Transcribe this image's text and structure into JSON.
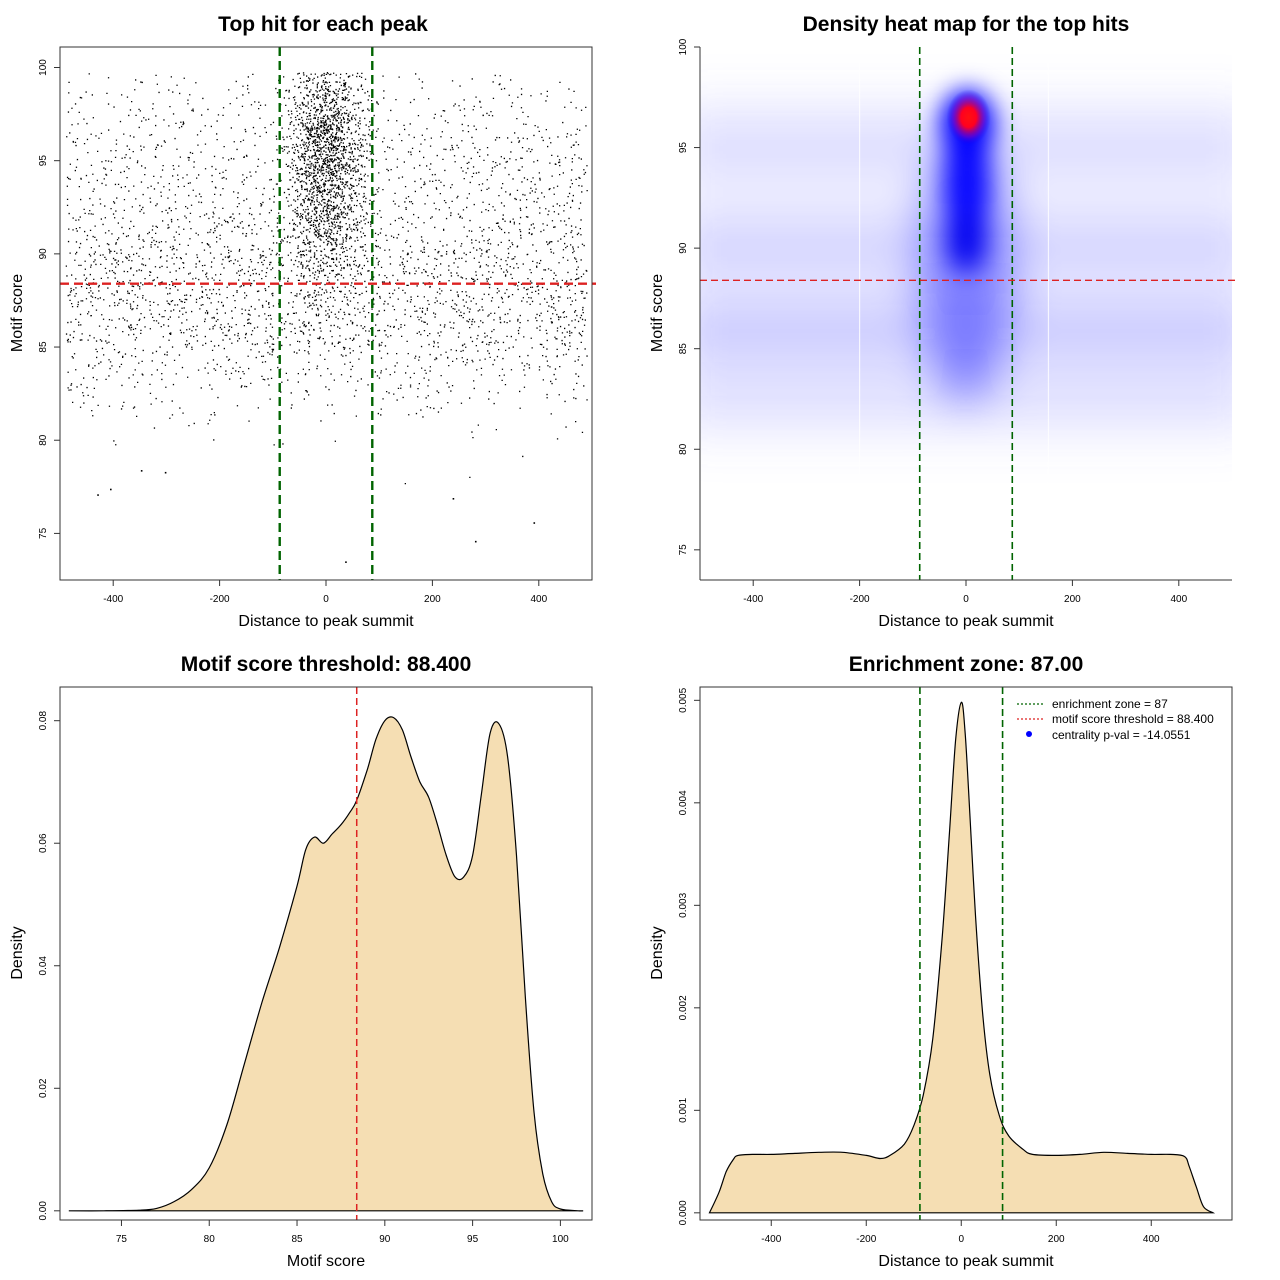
{
  "colors": {
    "green": "#006400",
    "red": "#dd2222",
    "fill": "#f5deb3",
    "heat_blue": "#0000ff",
    "heat_red": "#ff0000"
  },
  "chart_data": [
    {
      "id": "scatter",
      "type": "scatter",
      "title": "Top hit for each peak",
      "xlabel": "Distance to peak summit",
      "ylabel": "Motif score",
      "xlim": [
        -500,
        500
      ],
      "ylim": [
        72.5,
        101.1
      ],
      "xticks": [
        -400,
        -200,
        0,
        200,
        400
      ],
      "yticks": [
        75,
        80,
        85,
        90,
        95,
        100
      ],
      "vlines": [
        -87,
        87
      ],
      "hline": 88.4,
      "note": "Dense point cloud of ~50k peaks; background uniform over x in [-490,490], y ~80-100; strong central enrichment at x~0, y 88-100"
    },
    {
      "id": "heatmap",
      "type": "heatmap",
      "title": "Density heat map for the top hits",
      "xlabel": "Distance to peak summit",
      "ylabel": "Motif score",
      "xlim": [
        -500,
        500
      ],
      "ylim": [
        73.5,
        100
      ],
      "xticks": [
        -400,
        -200,
        0,
        200,
        400
      ],
      "yticks": [
        75,
        80,
        85,
        90,
        95,
        100
      ],
      "vlines": [
        -87,
        87
      ],
      "hline": 88.4,
      "peak": {
        "x": 5,
        "y": 96.5
      }
    },
    {
      "id": "score-density",
      "type": "area",
      "title": "Motif score threshold: 88.400",
      "xlabel": "Motif score",
      "ylabel": "Density",
      "xlim": [
        71.5,
        101.8
      ],
      "ylim": [
        -0.0015,
        0.0855
      ],
      "xticks": [
        75,
        80,
        85,
        90,
        95,
        100
      ],
      "yticks": [
        0.0,
        0.02,
        0.04,
        0.06,
        0.08
      ],
      "ytick_labels": [
        "0.00",
        "0.02",
        "0.04",
        "0.06",
        "0.08"
      ],
      "vline": 88.4,
      "x": [
        72,
        74,
        76,
        77,
        78,
        79,
        80,
        81,
        82,
        83,
        84,
        85,
        85.5,
        86,
        86.5,
        87,
        87.5,
        88,
        88.4,
        89,
        89.5,
        90,
        90.5,
        91,
        91.5,
        92,
        92.5,
        93,
        93.5,
        94,
        94.5,
        95,
        95.5,
        96,
        96.5,
        97,
        97.5,
        98,
        98.5,
        99,
        99.5,
        100,
        101
      ],
      "y": [
        0,
        0,
        0.0001,
        0.0004,
        0.0015,
        0.0035,
        0.007,
        0.014,
        0.024,
        0.034,
        0.043,
        0.053,
        0.059,
        0.061,
        0.06,
        0.0615,
        0.063,
        0.065,
        0.067,
        0.072,
        0.077,
        0.08,
        0.0805,
        0.0785,
        0.074,
        0.07,
        0.0675,
        0.063,
        0.058,
        0.0545,
        0.0545,
        0.058,
        0.068,
        0.078,
        0.0795,
        0.074,
        0.058,
        0.035,
        0.016,
        0.006,
        0.0015,
        0.0003,
        0
      ],
      "line_end": 101.3
    },
    {
      "id": "distance-density",
      "type": "area",
      "title": "Enrichment zone: 87.00",
      "xlabel": "Distance to peak summit",
      "ylabel": "Density",
      "xlim": [
        -550,
        570
      ],
      "ylim": [
        -7e-05,
        0.00513
      ],
      "xticks": [
        -400,
        -200,
        0,
        200,
        400
      ],
      "yticks": [
        0.0,
        0.001,
        0.002,
        0.003,
        0.004,
        0.005
      ],
      "ytick_labels": [
        "0.000",
        "0.001",
        "0.002",
        "0.003",
        "0.004",
        "0.005"
      ],
      "vlines": [
        -87,
        87
      ],
      "x": [
        -530,
        -510,
        -495,
        -480,
        -470,
        -440,
        -400,
        -350,
        -300,
        -250,
        -200,
        -170,
        -150,
        -120,
        -100,
        -80,
        -60,
        -40,
        -25,
        -12,
        0,
        8,
        18,
        30,
        45,
        60,
        80,
        100,
        130,
        150,
        200,
        250,
        300,
        350,
        400,
        440,
        470,
        480,
        495,
        510,
        530
      ],
      "y": [
        0,
        0.0002,
        0.0004,
        0.00052,
        0.00056,
        0.00057,
        0.00057,
        0.00058,
        0.00059,
        0.00059,
        0.00056,
        0.00053,
        0.00056,
        0.00067,
        0.00085,
        0.00115,
        0.0017,
        0.0027,
        0.0037,
        0.0046,
        0.00498,
        0.0047,
        0.0039,
        0.0029,
        0.00195,
        0.00135,
        0.00095,
        0.00075,
        0.00062,
        0.00057,
        0.00056,
        0.00057,
        0.00059,
        0.00058,
        0.00057,
        0.00057,
        0.00055,
        0.00045,
        0.00025,
        6e-05,
        0
      ],
      "legend": [
        {
          "label": "enrichment zone = 87",
          "style": "green-dotted"
        },
        {
          "label": "motif score threshold = 88.400",
          "style": "red-dotted"
        },
        {
          "label": "centrality p-val = -14.0551",
          "style": "blue-dot"
        }
      ]
    }
  ]
}
